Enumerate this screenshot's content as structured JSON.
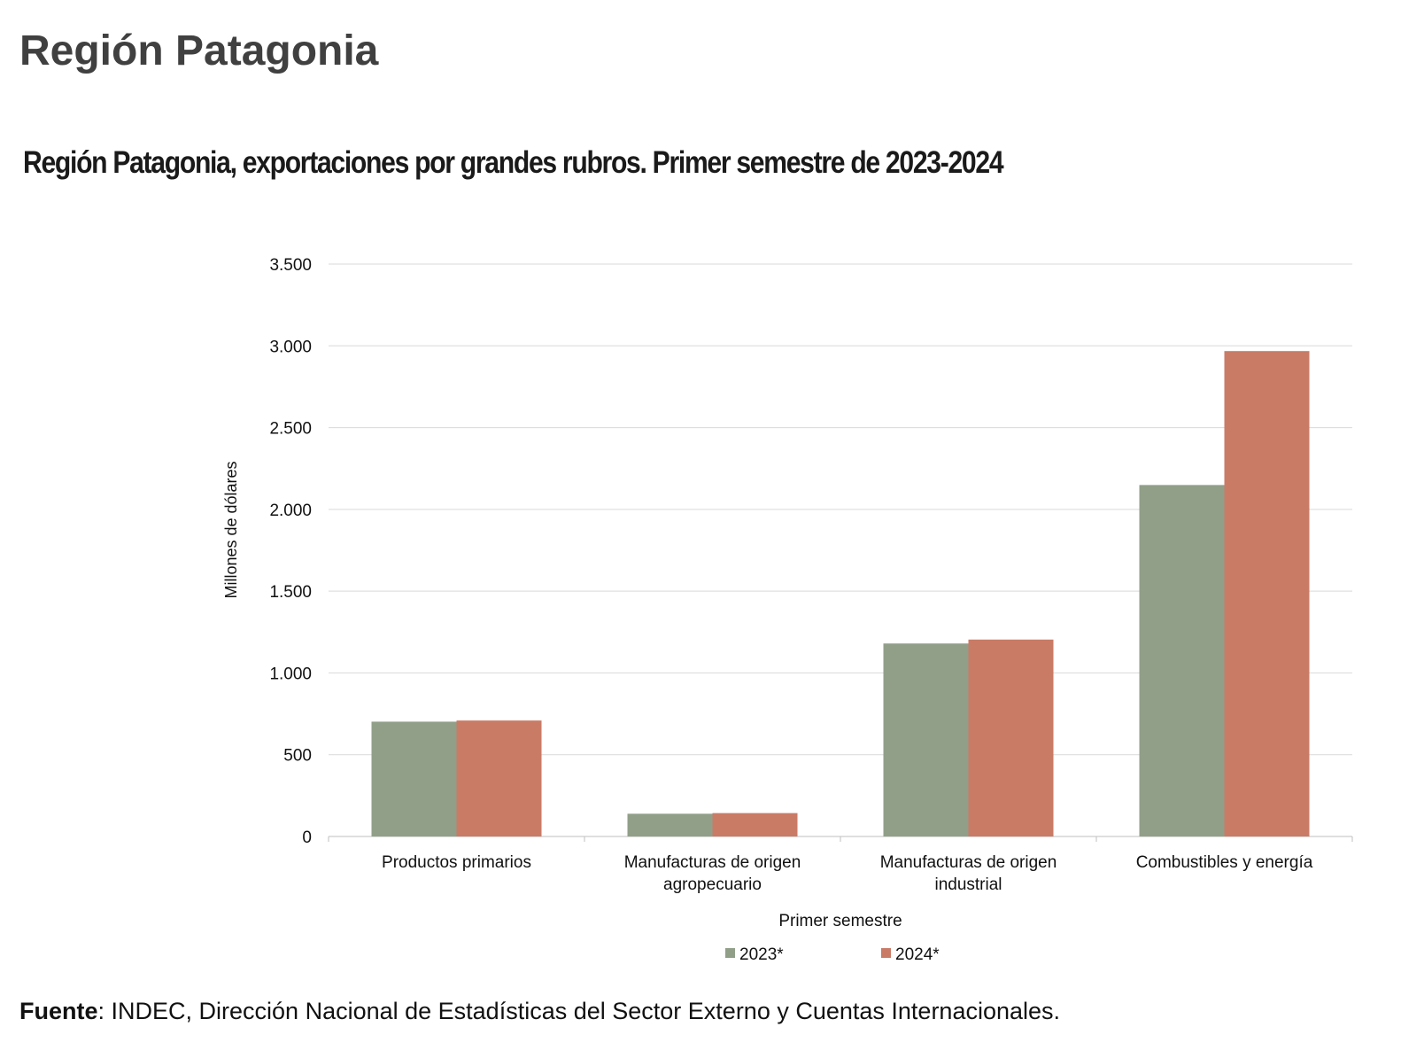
{
  "header": {
    "title": "Región Patagonia"
  },
  "source": {
    "label": "Fuente",
    "text": ": INDEC, Dirección Nacional de Estadísticas del Sector Externo y Cuentas Internacionales."
  },
  "chart_data": {
    "type": "bar",
    "title": "Región Patagonia, exportaciones por grandes rubros. Primer semestre de 2023-2024",
    "xlabel": "Primer semestre",
    "ylabel": "Millones de dólares",
    "ylim": [
      0,
      3500
    ],
    "yticks": [
      0,
      500,
      1000,
      1500,
      2000,
      2500,
      3000,
      3500
    ],
    "ytick_labels": [
      "0",
      "500",
      "1.000",
      "1.500",
      "2.000",
      "2.500",
      "3.000",
      "3.500"
    ],
    "grid": true,
    "legend_position": "bottom",
    "categories": [
      [
        "Productos primarios"
      ],
      [
        "Manufacturas de origen",
        "agropecuario"
      ],
      [
        "Manufacturas de origen",
        "industrial"
      ],
      [
        "Combustibles y energía"
      ]
    ],
    "series": [
      {
        "name": "2023*",
        "color": "#919f89",
        "values": [
          702,
          139,
          1180,
          2149
        ]
      },
      {
        "name": "2024*",
        "color": "#c97b66",
        "values": [
          709,
          143,
          1204,
          2968
        ]
      }
    ]
  }
}
